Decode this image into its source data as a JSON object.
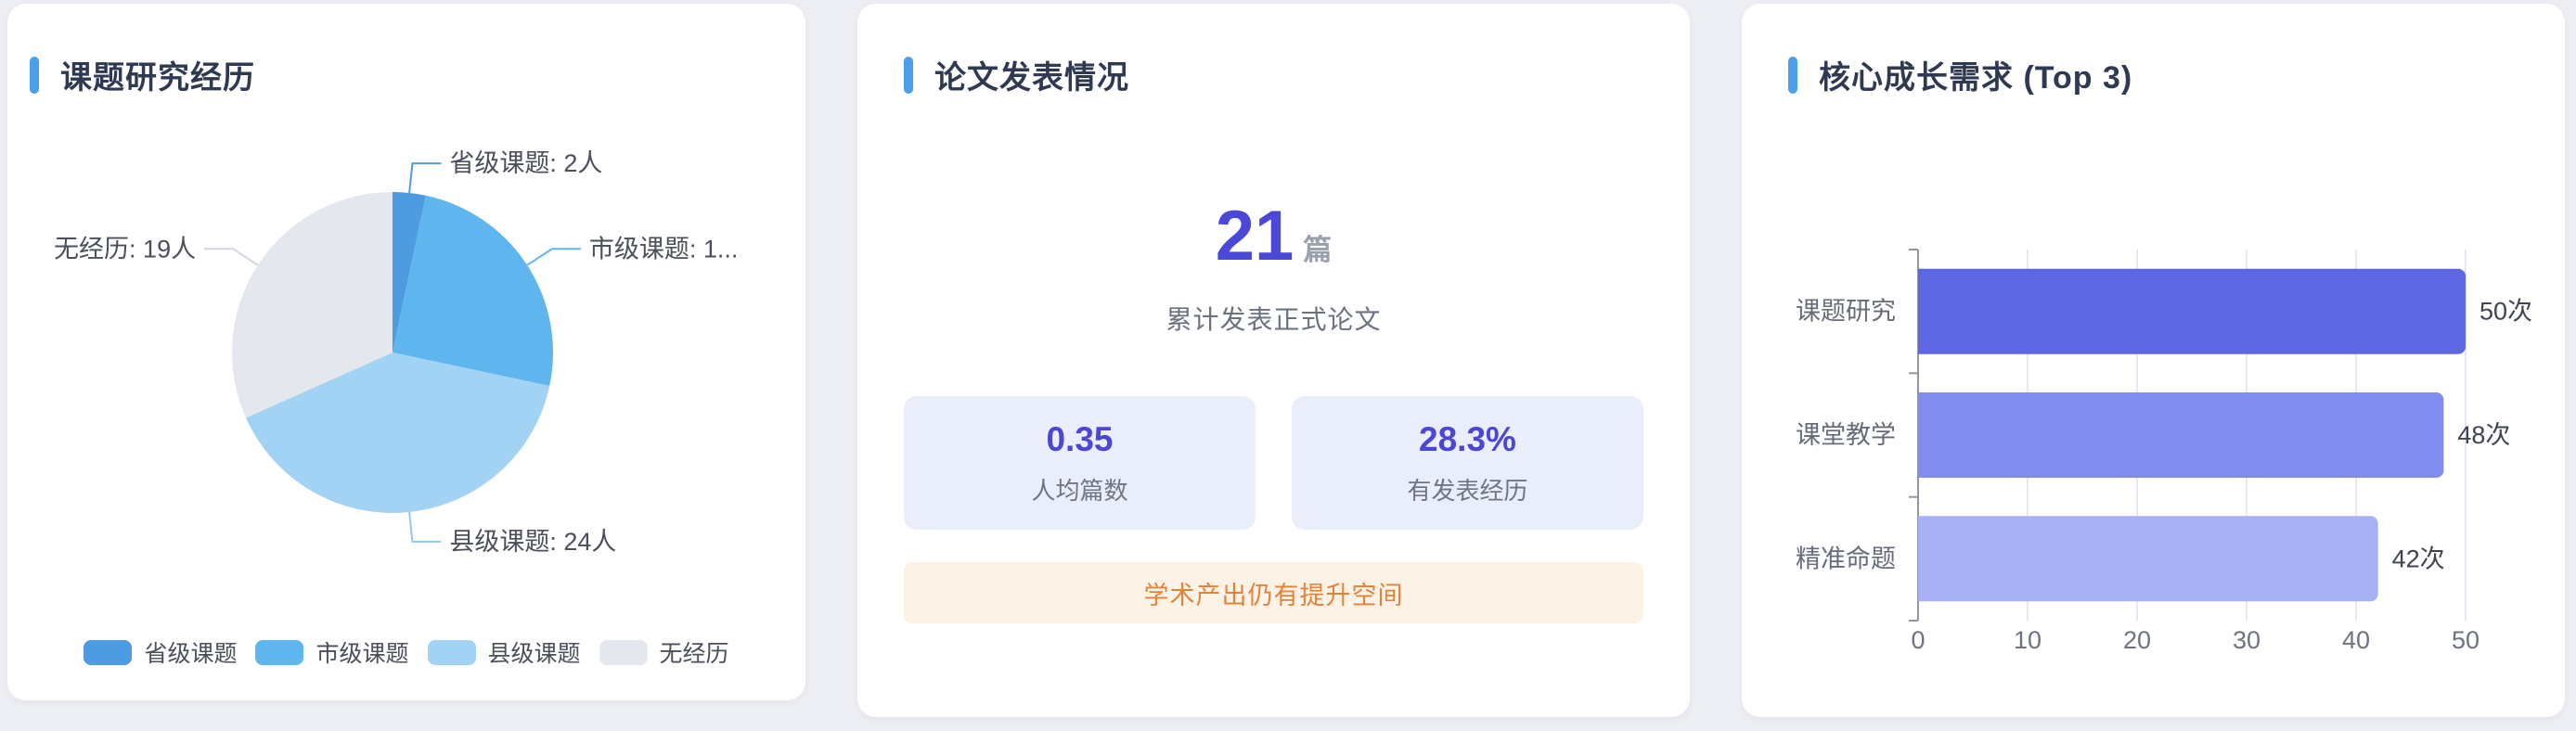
{
  "theme": {
    "accent_blue": "#4C9FE8",
    "indigo": "#4B48D8",
    "orange": "#E5823A"
  },
  "cards": {
    "research": {
      "title": "课题研究经历"
    },
    "papers": {
      "title": "论文发表情况",
      "total_value": "21",
      "total_unit": "篇",
      "total_caption": "累计发表正式论文",
      "stats": [
        {
          "value": "0.35",
          "label": "人均篇数"
        },
        {
          "value": "28.3%",
          "label": "有发表经历"
        }
      ],
      "note": "学术产出仍有提升空间"
    },
    "needs": {
      "title": "核心成长需求 (Top 3)"
    }
  },
  "chart_data": [
    {
      "type": "pie",
      "title": "课题研究经历",
      "legend_position": "bottom",
      "series": [
        {
          "name": "省级课题",
          "value": 2,
          "label_text": "省级课题: 2人",
          "color": "#4E9CE0",
          "leader_color": "#4E9CE0"
        },
        {
          "name": "市级课题",
          "value": 15,
          "label_text": "市级课题: 1...",
          "color": "#5FB6EF",
          "leader_color": "#5FB6EF"
        },
        {
          "name": "县级课题",
          "value": 24,
          "label_text": "县级课题: 24人",
          "color": "#A3D3F4",
          "leader_color": "#8CC8F0"
        },
        {
          "name": "无经历",
          "value": 19,
          "label_text": "无经历: 19人",
          "color": "#E4E7ED",
          "leader_color": "#D3D7DF"
        }
      ]
    },
    {
      "type": "bar",
      "title": "核心成长需求 (Top 3)",
      "orientation": "horizontal",
      "categories": [
        "课题研究",
        "课堂教学",
        "精准命题"
      ],
      "values": [
        50,
        48,
        42
      ],
      "value_labels": [
        "50次",
        "48次",
        "42次"
      ],
      "bar_colors": [
        "#5D66E3",
        "#828BEF",
        "#A9B1F5"
      ],
      "xlim": [
        0,
        50
      ],
      "x_ticks": [
        0,
        10,
        20,
        30,
        40,
        50
      ],
      "grid": true
    }
  ]
}
